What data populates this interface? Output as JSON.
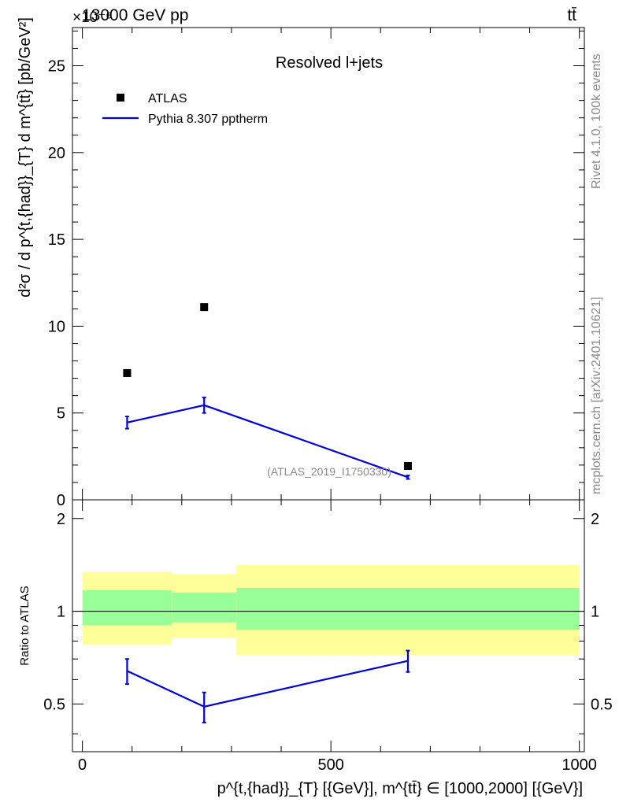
{
  "header": {
    "left": "13000 GeV pp",
    "right": "tt̄",
    "exponent": "×10⁻⁶"
  },
  "side_text": {
    "rivet": "Rivet 4.1.0,  100k events",
    "mcplots": "mcplots.cern.ch [arXiv:2401.10621]"
  },
  "chart_data": [
    {
      "panel": "main",
      "type": "line",
      "title": "Resolved l+jets",
      "watermark": "(ATLAS_2019_I1750330)",
      "ylabel": "d²σ / d p^{t,{had}}_{T} d m^{tt̄} [pb/GeV²]",
      "y_multiplier": "1e-6",
      "xlim": [
        -20,
        1010
      ],
      "ylim": [
        0,
        27.2
      ],
      "yticks": [
        0,
        5,
        10,
        15,
        20,
        25
      ],
      "legend": {
        "position": "top-left",
        "entries": [
          "ATLAS",
          "Pythia 8.307 pptherm"
        ]
      },
      "series": [
        {
          "name": "ATLAS",
          "style": "markers",
          "color": "#000000",
          "points": [
            {
              "x": 90,
              "y": 7.3
            },
            {
              "x": 245,
              "y": 11.1
            },
            {
              "x": 655,
              "y": 1.95
            }
          ]
        },
        {
          "name": "Pythia 8.307 pptherm",
          "style": "line",
          "color": "#0000dd",
          "points": [
            {
              "x": 90,
              "y": 4.45,
              "err": 0.35
            },
            {
              "x": 245,
              "y": 5.45,
              "err": 0.45
            },
            {
              "x": 655,
              "y": 1.3,
              "err": 0.1
            }
          ]
        }
      ]
    },
    {
      "panel": "ratio",
      "type": "line",
      "ylabel": "Ratio to ATLAS",
      "xlabel": "p^{t,{had}}_{T} [{GeV}], m^{tt̄} ∈ [1000,2000] [{GeV}]",
      "xlim": [
        -20,
        1010
      ],
      "ylim": [
        0.35,
        2.3
      ],
      "xticks": [
        0,
        500,
        1000
      ],
      "yticks": [
        0.5,
        1,
        2
      ],
      "bands": [
        {
          "x0": 0,
          "x1": 180,
          "yellow": [
            0.78,
            1.34
          ],
          "green": [
            0.9,
            1.17
          ]
        },
        {
          "x0": 180,
          "x1": 310,
          "yellow": [
            0.82,
            1.32
          ],
          "green": [
            0.92,
            1.15
          ]
        },
        {
          "x0": 310,
          "x1": 1000,
          "yellow": [
            0.72,
            1.41
          ],
          "green": [
            0.87,
            1.19
          ]
        }
      ],
      "series": [
        {
          "name": "Pythia 8.307 pptherm",
          "color": "#0000dd",
          "points": [
            {
              "x": 90,
              "y": 0.64,
              "err": 0.06
            },
            {
              "x": 245,
              "y": 0.49,
              "err": 0.055
            },
            {
              "x": 655,
              "y": 0.69,
              "err": 0.055
            }
          ]
        }
      ]
    }
  ]
}
